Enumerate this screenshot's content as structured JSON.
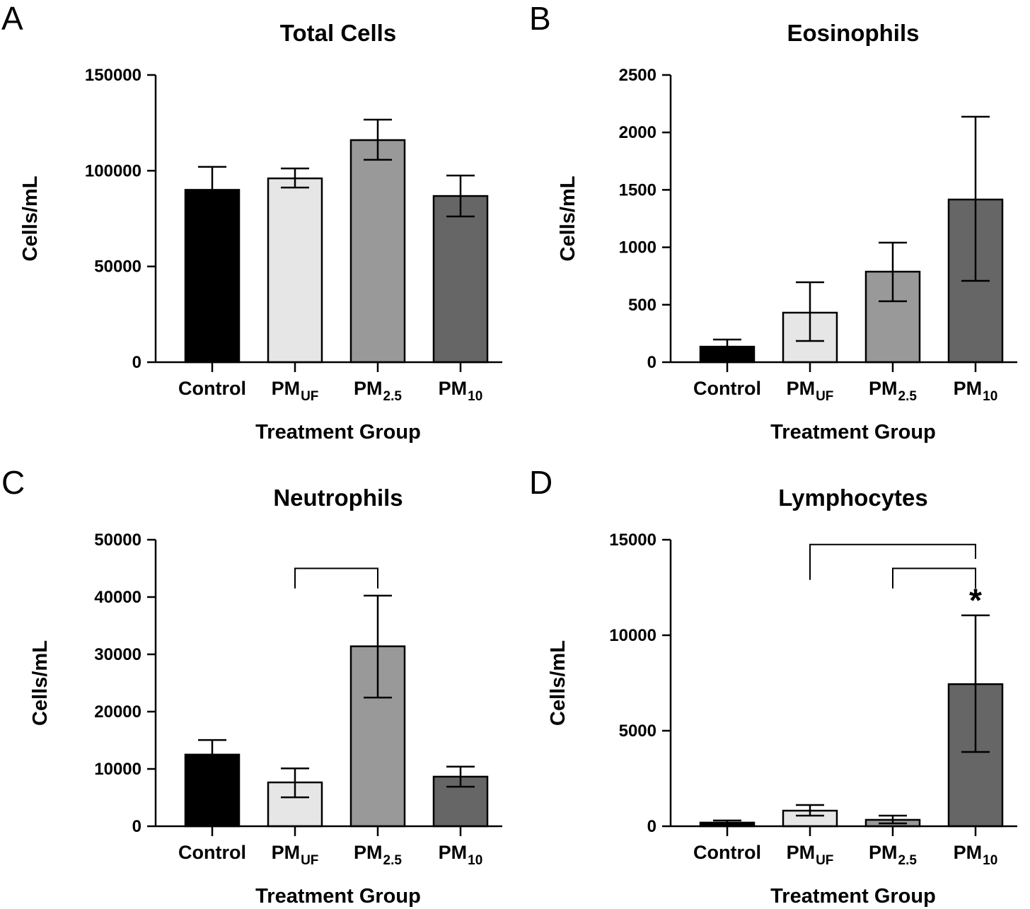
{
  "chart_data": [
    {
      "type": "bar",
      "panel_letter": "A",
      "title": "Total Cells",
      "xlabel": "Treatment Group",
      "ylabel": "Cells/mL",
      "ylim": [
        0,
        150000
      ],
      "yticks": [
        "0",
        "50000",
        "100000",
        "150000"
      ],
      "ytick_values": [
        0,
        50000,
        100000,
        150000
      ],
      "categories": [
        {
          "main": "Control",
          "sub": ""
        },
        {
          "main": "PM",
          "sub": "UF"
        },
        {
          "main": "PM",
          "sub": "2.5"
        },
        {
          "main": "PM",
          "sub": "10"
        }
      ],
      "colors": [
        "#000000",
        "#e6e6e6",
        "#999999",
        "#666666"
      ],
      "values": [
        90000,
        96000,
        116000,
        86800
      ],
      "error_high": [
        102000,
        101200,
        126700,
        97500
      ],
      "error_low": [
        null,
        91200,
        105700,
        76100
      ],
      "brackets": [],
      "annotations": []
    },
    {
      "type": "bar",
      "panel_letter": "B",
      "title": "Eosinophils",
      "xlabel": "Treatment Group",
      "ylabel": "Cells/mL",
      "ylim": [
        0,
        2500
      ],
      "yticks": [
        "0",
        "500",
        "1000",
        "1500",
        "2000",
        "2500"
      ],
      "ytick_values": [
        0,
        500,
        1000,
        1500,
        2000,
        2500
      ],
      "categories": [
        {
          "main": "Control",
          "sub": ""
        },
        {
          "main": "PM",
          "sub": "UF"
        },
        {
          "main": "PM",
          "sub": "2.5"
        },
        {
          "main": "PM",
          "sub": "10"
        }
      ],
      "colors": [
        "#000000",
        "#e6e6e6",
        "#999999",
        "#666666"
      ],
      "values": [
        135,
        431,
        788,
        1416
      ],
      "error_high": [
        197,
        696,
        1041,
        2137
      ],
      "error_low": [
        null,
        185,
        530,
        708
      ],
      "brackets": [],
      "annotations": []
    },
    {
      "type": "bar",
      "panel_letter": "C",
      "title": "Neutrophils",
      "xlabel": "Treatment Group",
      "ylabel": "Cells/mL",
      "ylim": [
        0,
        50000
      ],
      "yticks": [
        "0",
        "10000",
        "20000",
        "30000",
        "40000",
        "50000"
      ],
      "ytick_values": [
        0,
        10000,
        20000,
        30000,
        40000,
        50000
      ],
      "categories": [
        {
          "main": "Control",
          "sub": ""
        },
        {
          "main": "PM",
          "sub": "UF"
        },
        {
          "main": "PM",
          "sub": "2.5"
        },
        {
          "main": "PM",
          "sub": "10"
        }
      ],
      "colors": [
        "#000000",
        "#e6e6e6",
        "#999999",
        "#666666"
      ],
      "values": [
        12500,
        7650,
        31400,
        8650
      ],
      "error_high": [
        15050,
        10100,
        40250,
        10400
      ],
      "error_low": [
        null,
        5050,
        22450,
        6900
      ],
      "brackets": [
        {
          "from": 1,
          "to": 2,
          "y": 45000,
          "left_end": 41500,
          "right_end": 41500
        }
      ],
      "annotations": []
    },
    {
      "type": "bar",
      "panel_letter": "D",
      "title": "Lymphocytes",
      "xlabel": "Treatment Group",
      "ylabel": "Cells/mL",
      "ylim": [
        0,
        15000
      ],
      "yticks": [
        "0",
        "5000",
        "10000",
        "15000"
      ],
      "ytick_values": [
        0,
        5000,
        10000,
        15000
      ],
      "categories": [
        {
          "main": "Control",
          "sub": ""
        },
        {
          "main": "PM",
          "sub": "UF"
        },
        {
          "main": "PM",
          "sub": "2.5"
        },
        {
          "main": "PM",
          "sub": "10"
        }
      ],
      "colors": [
        "#000000",
        "#e6e6e6",
        "#999999",
        "#666666"
      ],
      "values": [
        190,
        815,
        335,
        7440
      ],
      "error_high": [
        300,
        1110,
        555,
        11040
      ],
      "error_low": [
        null,
        555,
        150,
        3890
      ],
      "brackets": [
        {
          "from": 1,
          "to": 3,
          "y": 14750,
          "left_end": 12900,
          "right_end": 14000
        },
        {
          "from": 2,
          "to": 3,
          "y": 13500,
          "left_end": 12450,
          "right_end": 12450
        }
      ],
      "annotations": [
        {
          "category": 3,
          "y": 12050,
          "text": "*"
        }
      ]
    }
  ]
}
